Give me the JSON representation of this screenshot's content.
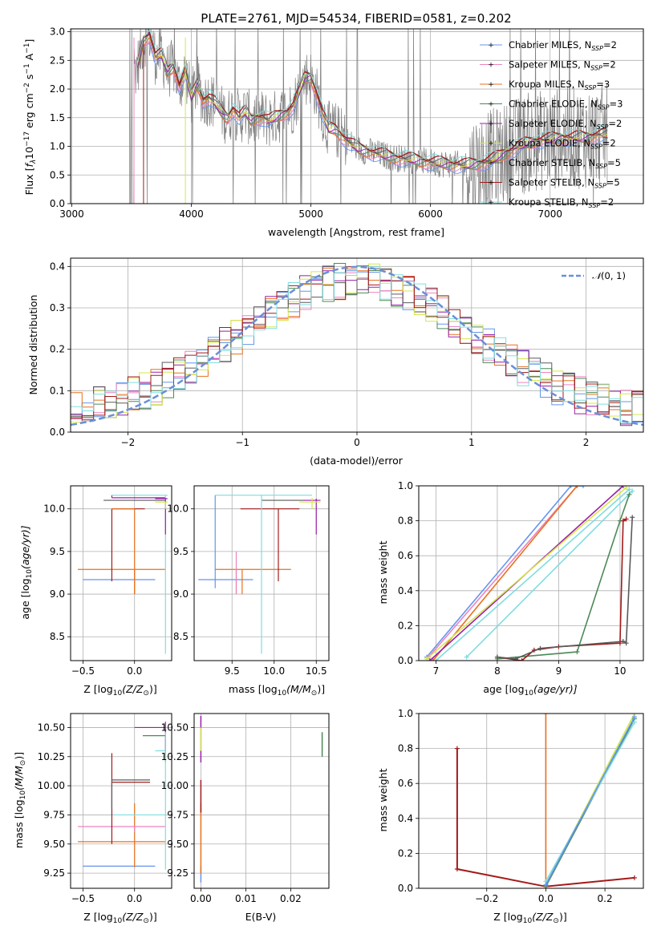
{
  "colors": {
    "data": "#808080",
    "chabrier_miles": "#6495ed",
    "salpeter_miles": "#ee82c0",
    "kroupa_miles": "#e8711c",
    "chabrier_elodie": "#4c8a57",
    "salpeter_elodie": "#9b1fa8",
    "kroupa_elodie": "#d4e84a",
    "chabrier_stelib": "#5a5a5a",
    "salpeter_stelib": "#a31a1a",
    "kroupa_stelib": "#80dde0",
    "gauss": "#6a8fd8"
  },
  "chart_data": [
    {
      "type": "line",
      "title": "PLATE=2761, MJD=54534, FIBERID=0581, z=0.202",
      "xlabel": "wavelength [Angstrom, rest frame]",
      "ylabel_prefix": "Flux [",
      "ylabel_mid": "10",
      "ylabel_exp1": "−17",
      "ylabel_text": " erg cm",
      "ylabel_exp2": "−2",
      "ylabel_s": " s",
      "ylabel_exp3": "−1",
      "ylabel_end": " A",
      "ylabel_exp4": "−1",
      "ylabel_close": "]",
      "xlim": [
        2990,
        7780
      ],
      "ylim": [
        0,
        3.05
      ],
      "xticks": [
        "3000",
        "4000",
        "5000",
        "6000",
        "7000"
      ],
      "yticks": [
        "0.0",
        "0.5",
        "1.0",
        "1.5",
        "2.0",
        "2.5",
        "3.0"
      ],
      "legend_position": "top-right",
      "model_x": [
        3550,
        3600,
        3650,
        3700,
        3750,
        3800,
        3850,
        3900,
        3950,
        4000,
        4050,
        4100,
        4150,
        4200,
        4250,
        4300,
        4350,
        4400,
        4450,
        4500,
        4550,
        4600,
        4650,
        4700,
        4750,
        4800,
        4850,
        4900,
        4950,
        5000,
        5050,
        5100,
        5150,
        5200,
        5300,
        5400,
        5500,
        5600,
        5700,
        5800,
        5900,
        6000,
        6100,
        6200,
        6300,
        6400,
        6500,
        6600,
        6700,
        6800,
        6900,
        7000,
        7100,
        7200,
        7300,
        7400
      ],
      "model_y": [
        2.4,
        2.85,
        2.95,
        2.55,
        2.6,
        2.3,
        2.4,
        2.05,
        2.3,
        1.85,
        2.1,
        1.8,
        1.85,
        1.75,
        1.6,
        1.5,
        1.65,
        1.5,
        1.6,
        1.45,
        1.5,
        1.5,
        1.45,
        1.5,
        1.55,
        1.6,
        1.7,
        1.95,
        2.2,
        2.2,
        1.9,
        1.55,
        1.3,
        1.3,
        1.1,
        0.95,
        0.9,
        0.85,
        0.8,
        0.78,
        0.75,
        0.72,
        0.7,
        0.68,
        0.67,
        0.7,
        0.75,
        0.85,
        0.95,
        1.05,
        1.1,
        1.12,
        1.15,
        1.15,
        1.15,
        1.2
      ],
      "legend": [
        {
          "label": "Chabrier MILES, N",
          "n": "2"
        },
        {
          "label": "Salpeter MILES, N",
          "n": "2"
        },
        {
          "label": "Kroupa MILES, N",
          "n": "3"
        },
        {
          "label": "Chabrier ELODIE, N",
          "n": "3"
        },
        {
          "label": "Salpeter ELODIE, N",
          "n": "2"
        },
        {
          "label": "Kroupa ELODIE, N",
          "n": "2"
        },
        {
          "label": "Chabrier STELIB, N",
          "n": "5"
        },
        {
          "label": "Salpeter STELIB, N",
          "n": "5"
        },
        {
          "label": "Kroupa STELIB, N",
          "n": "2"
        }
      ],
      "legend_sub": "SSP",
      "legend_eq": "="
    },
    {
      "type": "bar",
      "xlabel": "(data-model)/error",
      "ylabel": "Normed distribution",
      "xlim": [
        -2.5,
        2.5
      ],
      "ylim": [
        0,
        0.42
      ],
      "xticks": [
        "−2",
        "−1",
        "0",
        "1",
        "2"
      ],
      "yticks": [
        "0.0",
        "0.1",
        "0.2",
        "0.3",
        "0.4"
      ],
      "legend_label": "(0, 1)",
      "legend_n": "𝒩",
      "legend_position": "top-right",
      "gauss_mean": 0,
      "gauss_sigma": 1
    },
    {
      "type": "scatter",
      "xlabel_pre": "Z [log",
      "xlabel_sub": "10",
      "xlabel_post": "(Z/Z",
      "xlabel_sun": "⊙",
      "xlabel_end": ")]",
      "ylabel_pre": "age  [log",
      "ylabel_sub": "10",
      "ylabel_post": "(age/yr)]",
      "xlim": [
        -0.62,
        0.36
      ],
      "ylim": [
        8.22,
        10.27
      ],
      "xticks": [
        "−0.5",
        "0.0"
      ],
      "yticks": [
        "8.5",
        "9.0",
        "9.5",
        "10.0"
      ]
    },
    {
      "type": "scatter",
      "xlabel_pre": "mass [log",
      "xlabel_sub": "10",
      "xlabel_post": "(M/M",
      "xlabel_sun": "⊙",
      "xlabel_end": ")]",
      "xlim": [
        9.05,
        10.65
      ],
      "ylim": [
        8.22,
        10.27
      ],
      "xticks": [
        "9.5",
        "10.0",
        "10.5"
      ],
      "yticks": [
        "8.5",
        "9.0",
        "9.5",
        "10.0"
      ]
    },
    {
      "type": "line",
      "xlabel_pre": "age  [log",
      "xlabel_sub": "10",
      "xlabel_post": "(age/yr)]",
      "ylabel": "mass weight",
      "xlim": [
        6.72,
        10.38
      ],
      "ylim": [
        0,
        1
      ],
      "xticks": [
        "7",
        "8",
        "9",
        "10"
      ],
      "yticks": [
        "0.0",
        "0.2",
        "0.4",
        "0.6",
        "0.8",
        "1.0"
      ]
    },
    {
      "type": "scatter",
      "xlabel_pre": "Z [log",
      "xlabel_sub": "10",
      "xlabel_post": "(Z/Z",
      "xlabel_sun": "⊙",
      "xlabel_end": ")]",
      "ylabel_pre": "mass [log",
      "ylabel_sub": "10",
      "ylabel_post": "(M/M",
      "ylabel_sun": "⊙",
      "ylabel_end": ")]",
      "xlim": [
        -0.62,
        0.36
      ],
      "ylim": [
        9.12,
        10.62
      ],
      "xticks": [
        "−0.5",
        "0.0"
      ],
      "yticks": [
        "9.25",
        "9.50",
        "9.75",
        "10.00",
        "10.25",
        "10.50"
      ]
    },
    {
      "type": "scatter",
      "xlabel": "E(B-V)",
      "xlim": [
        -0.0015,
        0.0285
      ],
      "ylim": [
        9.12,
        10.62
      ],
      "xticks": [
        "0.00",
        "0.01",
        "0.02"
      ],
      "yticks": [
        "9.25",
        "9.50",
        "9.75",
        "10.00",
        "10.25",
        "10.50"
      ]
    },
    {
      "type": "line",
      "xlabel_pre": "Z [log",
      "xlabel_sub": "10",
      "xlabel_post": "(Z/Z",
      "xlabel_sun": "⊙",
      "xlabel_end": ")]",
      "ylabel": "mass weight",
      "xlim": [
        -0.43,
        0.33
      ],
      "ylim": [
        0,
        1
      ],
      "xticks": [
        "−0.2",
        "0.0",
        "0.2"
      ],
      "yticks": [
        "0.0",
        "0.2",
        "0.4",
        "0.6",
        "0.8",
        "1.0"
      ]
    }
  ]
}
